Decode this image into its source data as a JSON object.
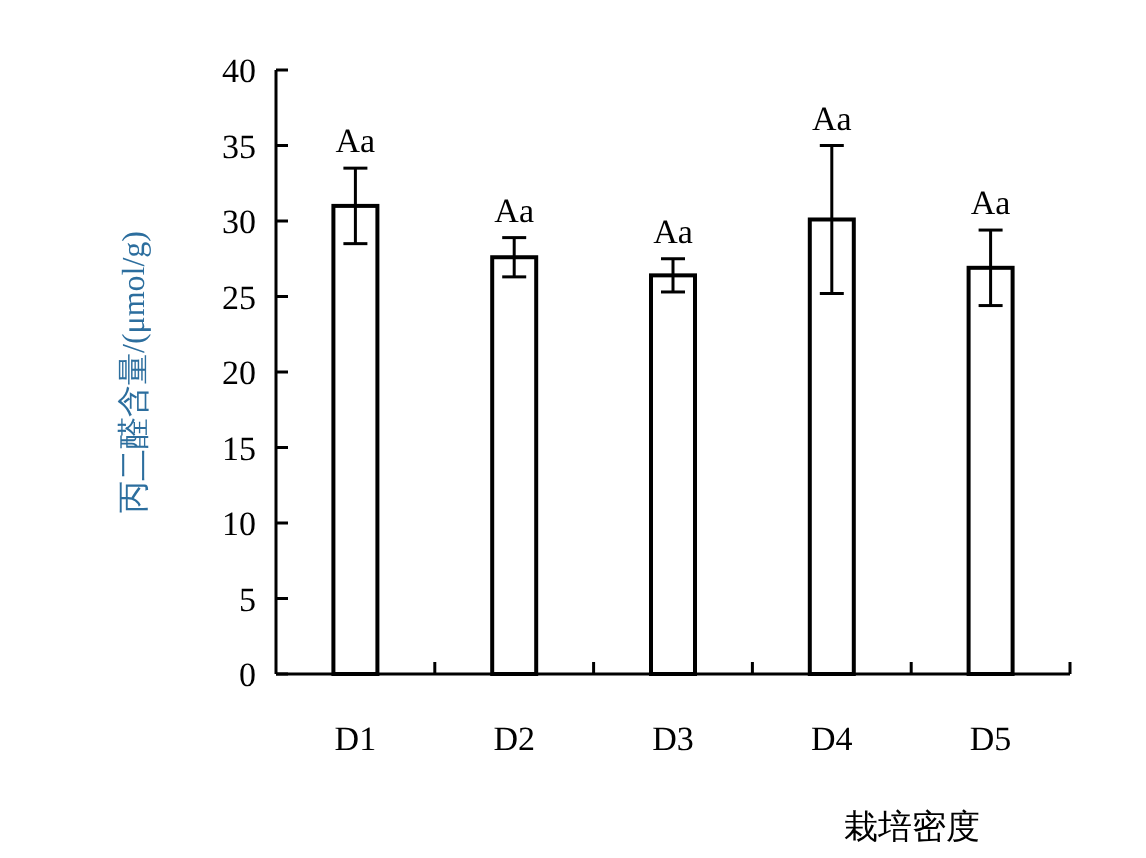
{
  "chart_data": {
    "type": "bar",
    "xlabel": "栽培密度",
    "ylabel": "丙二醛含量/(μmol/g)",
    "categories": [
      "D1",
      "D2",
      "D3",
      "D4",
      "D5"
    ],
    "values": [
      31.0,
      27.6,
      26.4,
      30.1,
      26.9
    ],
    "errors": [
      2.5,
      1.3,
      1.1,
      4.9,
      2.5
    ],
    "color": "#ffffff",
    "ylim": [
      0,
      40
    ],
    "yticks": [
      0,
      5,
      10,
      15,
      20,
      25,
      30,
      35,
      40
    ],
    "grid": false,
    "annotations": [
      {
        "text": "Aa",
        "x": "D1",
        "y": 33.5
      },
      {
        "text": "Aa",
        "x": "D2",
        "y": 28.9
      },
      {
        "text": "Aa",
        "x": "D3",
        "y": 27.5
      },
      {
        "text": "Aa",
        "x": "D4",
        "y": 35.0
      },
      {
        "text": "Aa",
        "x": "D5",
        "y": 29.4
      }
    ]
  }
}
